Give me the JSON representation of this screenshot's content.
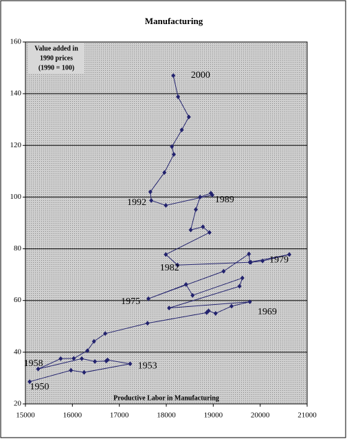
{
  "chart_data": {
    "type": "connected-scatter",
    "title": "Manufacturing",
    "xlabel": "Productive Labor in Manufacturing",
    "ylabel": [
      "Value added in",
      "1990 prices",
      "(1990 = 100)"
    ],
    "color": "#23236e",
    "grid": true,
    "xlim": [
      15000,
      21000
    ],
    "ylim": [
      20,
      160
    ],
    "xticks": [
      15000,
      16000,
      17000,
      18000,
      19000,
      20000,
      21000
    ],
    "yticks": [
      20,
      40,
      60,
      80,
      100,
      120,
      140,
      160
    ],
    "series": [
      {
        "color": "#23236e",
        "x": [
          15090,
          15970,
          16250,
          17230,
          16750,
          16720,
          16480,
          16200,
          15270,
          15750,
          16030,
          16320,
          16460,
          16700,
          17600,
          18860,
          18900,
          19050,
          19390,
          19780,
          18060,
          19560,
          19620,
          18560,
          18420,
          17620,
          19220,
          19760,
          19780,
          20620,
          20050,
          19800,
          18240,
          17990,
          18920,
          18780,
          18520,
          18630,
          18720,
          18950,
          18980,
          17990,
          17680,
          17660,
          17960,
          18160,
          18120,
          18330,
          18480,
          18250,
          18150
        ],
        "values": [
          28.6,
          33.0,
          32.2,
          35.5,
          37.0,
          36.6,
          36.4,
          37.5,
          33.5,
          37.5,
          37.6,
          40.6,
          44.2,
          47.2,
          51.2,
          55.3,
          56.0,
          55.0,
          57.8,
          59.5,
          57.1,
          65.5,
          68.7,
          62.0,
          66.2,
          60.7,
          71.3,
          78.0,
          74.8,
          77.8,
          75.3,
          74.8,
          73.7,
          77.8,
          86.3,
          88.5,
          87.3,
          95.2,
          100.0,
          101.5,
          100.8,
          96.8,
          98.7,
          102.0,
          109.5,
          116.5,
          119.5,
          126.0,
          131.0,
          138.8,
          147.0
        ]
      }
    ],
    "annotations": [
      {
        "text": "2000",
        "x": 18730,
        "y": 147
      },
      {
        "text": "1989",
        "x": 19240,
        "y": 98.8
      },
      {
        "text": "1992",
        "x": 17370,
        "y": 97.8
      },
      {
        "text": "1982",
        "x": 18070,
        "y": 72.5
      },
      {
        "text": "1979",
        "x": 20400,
        "y": 75.5
      },
      {
        "text": "1975",
        "x": 17240,
        "y": 59.5
      },
      {
        "text": "1969",
        "x": 20150,
        "y": 55.5
      },
      {
        "text": "1958",
        "x": 15170,
        "y": 35.5
      },
      {
        "text": "1953",
        "x": 17600,
        "y": 34.5
      },
      {
        "text": "1950",
        "x": 15300,
        "y": 26.5
      }
    ]
  }
}
